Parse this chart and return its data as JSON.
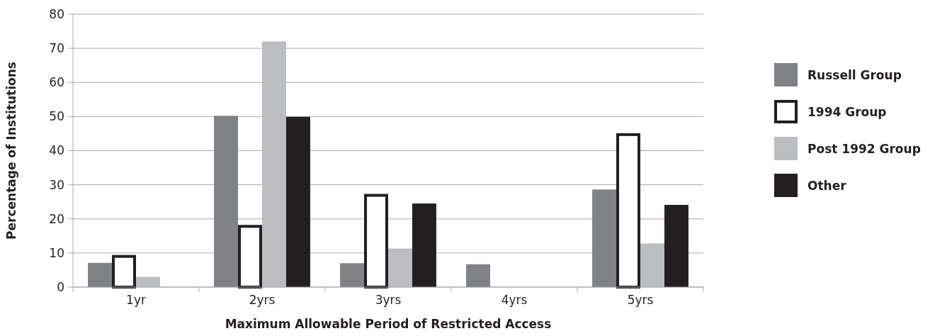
{
  "chart_data": {
    "type": "bar",
    "xlabel": "Maximum Allowable Period of Restricted Access",
    "ylabel": "Percentage of Institutions",
    "categories": [
      "1yr",
      "2yrs",
      "3yrs",
      "4yrs",
      "5yrs"
    ],
    "series": [
      {
        "name": "Russell Group",
        "color": "#818285",
        "values": [
          7.1,
          50.2,
          7.0,
          6.7,
          28.6
        ]
      },
      {
        "name": "1994 Group",
        "color": "#ffffff",
        "values": [
          9.0,
          17.8,
          26.9,
          0,
          44.7
        ]
      },
      {
        "name": "Post 1992 Group",
        "color": "#bcbdc0",
        "values": [
          3.0,
          72.0,
          11.3,
          0,
          12.8
        ]
      },
      {
        "name": "Other",
        "color": "#231f20",
        "values": [
          0,
          49.9,
          24.5,
          0,
          24.1
        ]
      }
    ],
    "ylim": [
      0,
      80
    ],
    "yticks": [
      0,
      10,
      20,
      30,
      40,
      50,
      60,
      70,
      80
    ],
    "grid": "y",
    "legend": "right"
  }
}
